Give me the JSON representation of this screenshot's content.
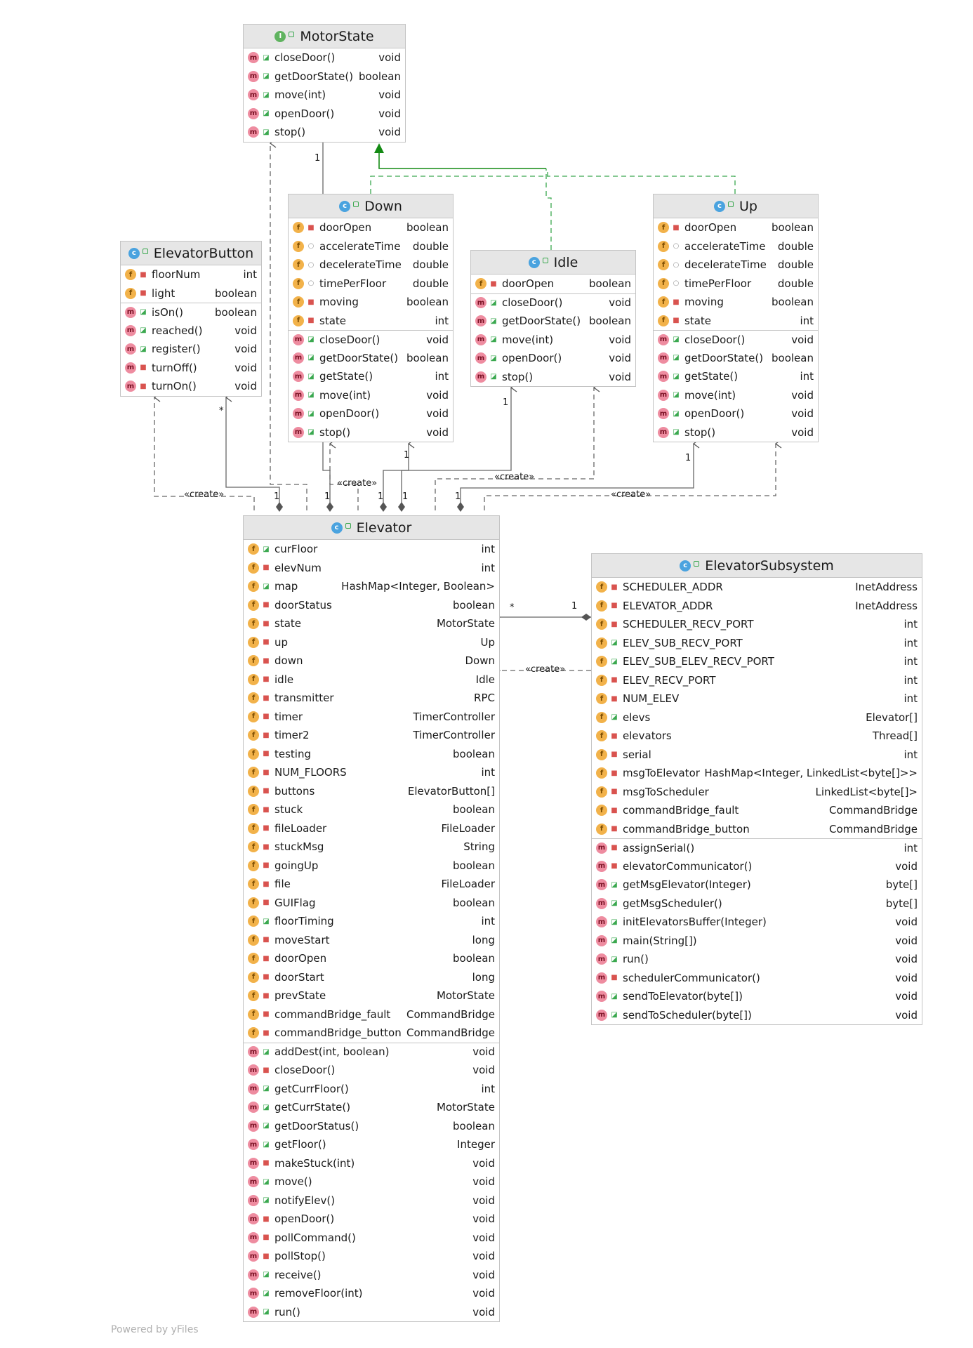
{
  "classes": {
    "motorstate": {
      "name": "MotorState",
      "kind": "interface",
      "fields": [],
      "methods": [
        {
          "n": "closeDoor()",
          "t": "void",
          "v": "pub"
        },
        {
          "n": "getDoorState()",
          "t": "boolean",
          "v": "pub"
        },
        {
          "n": "move(int)",
          "t": "void",
          "v": "pub"
        },
        {
          "n": "openDoor()",
          "t": "void",
          "v": "pub"
        },
        {
          "n": "stop()",
          "t": "void",
          "v": "pub"
        }
      ]
    },
    "down": {
      "name": "Down",
      "kind": "class",
      "fields": [
        {
          "n": "doorOpen",
          "t": "boolean",
          "v": "priv"
        },
        {
          "n": "accelerateTime",
          "t": "double",
          "v": "pkg"
        },
        {
          "n": "decelerateTime",
          "t": "double",
          "v": "pkg"
        },
        {
          "n": "timePerFloor",
          "t": "double",
          "v": "pkg"
        },
        {
          "n": "moving",
          "t": "boolean",
          "v": "priv"
        },
        {
          "n": "state",
          "t": "int",
          "v": "priv"
        }
      ],
      "methods": [
        {
          "n": "closeDoor()",
          "t": "void",
          "v": "pub"
        },
        {
          "n": "getDoorState()",
          "t": "boolean",
          "v": "pub"
        },
        {
          "n": "getState()",
          "t": "int",
          "v": "pub"
        },
        {
          "n": "move(int)",
          "t": "void",
          "v": "pub"
        },
        {
          "n": "openDoor()",
          "t": "void",
          "v": "pub"
        },
        {
          "n": "stop()",
          "t": "void",
          "v": "pub"
        }
      ]
    },
    "idle": {
      "name": "Idle",
      "kind": "class",
      "fields": [
        {
          "n": "doorOpen",
          "t": "boolean",
          "v": "priv"
        }
      ],
      "methods": [
        {
          "n": "closeDoor()",
          "t": "void",
          "v": "pub"
        },
        {
          "n": "getDoorState()",
          "t": "boolean",
          "v": "pub"
        },
        {
          "n": "move(int)",
          "t": "void",
          "v": "pub"
        },
        {
          "n": "openDoor()",
          "t": "void",
          "v": "pub"
        },
        {
          "n": "stop()",
          "t": "void",
          "v": "pub"
        }
      ]
    },
    "up": {
      "name": "Up",
      "kind": "class",
      "fields": [
        {
          "n": "doorOpen",
          "t": "boolean",
          "v": "priv"
        },
        {
          "n": "accelerateTime",
          "t": "double",
          "v": "pkg"
        },
        {
          "n": "decelerateTime",
          "t": "double",
          "v": "pkg"
        },
        {
          "n": "timePerFloor",
          "t": "double",
          "v": "pkg"
        },
        {
          "n": "moving",
          "t": "boolean",
          "v": "priv"
        },
        {
          "n": "state",
          "t": "int",
          "v": "priv"
        }
      ],
      "methods": [
        {
          "n": "closeDoor()",
          "t": "void",
          "v": "pub"
        },
        {
          "n": "getDoorState()",
          "t": "boolean",
          "v": "pub"
        },
        {
          "n": "getState()",
          "t": "int",
          "v": "pub"
        },
        {
          "n": "move(int)",
          "t": "void",
          "v": "pub"
        },
        {
          "n": "openDoor()",
          "t": "void",
          "v": "pub"
        },
        {
          "n": "stop()",
          "t": "void",
          "v": "pub"
        }
      ]
    },
    "elevatorbutton": {
      "name": "ElevatorButton",
      "kind": "class",
      "fields": [
        {
          "n": "floorNum",
          "t": "int",
          "v": "priv"
        },
        {
          "n": "light",
          "t": "boolean",
          "v": "priv"
        }
      ],
      "methods": [
        {
          "n": "isOn()",
          "t": "boolean",
          "v": "pub"
        },
        {
          "n": "reached()",
          "t": "void",
          "v": "pub"
        },
        {
          "n": "register()",
          "t": "void",
          "v": "pub"
        },
        {
          "n": "turnOff()",
          "t": "void",
          "v": "priv"
        },
        {
          "n": "turnOn()",
          "t": "void",
          "v": "priv"
        }
      ]
    },
    "elevator": {
      "name": "Elevator",
      "kind": "class",
      "fields": [
        {
          "n": "curFloor",
          "t": "int",
          "v": "pub"
        },
        {
          "n": "elevNum",
          "t": "int",
          "v": "priv"
        },
        {
          "n": "map",
          "t": "HashMap<Integer, Boolean>",
          "v": "pub"
        },
        {
          "n": "doorStatus",
          "t": "boolean",
          "v": "priv"
        },
        {
          "n": "state",
          "t": "MotorState",
          "v": "priv"
        },
        {
          "n": "up",
          "t": "Up",
          "v": "priv"
        },
        {
          "n": "down",
          "t": "Down",
          "v": "priv"
        },
        {
          "n": "idle",
          "t": "Idle",
          "v": "priv"
        },
        {
          "n": "transmitter",
          "t": "RPC",
          "v": "priv"
        },
        {
          "n": "timer",
          "t": "TimerController",
          "v": "priv"
        },
        {
          "n": "timer2",
          "t": "TimerController",
          "v": "priv"
        },
        {
          "n": "testing",
          "t": "boolean",
          "v": "priv"
        },
        {
          "n": "NUM_FLOORS",
          "t": "int",
          "v": "priv"
        },
        {
          "n": "buttons",
          "t": "ElevatorButton[]",
          "v": "priv"
        },
        {
          "n": "stuck",
          "t": "boolean",
          "v": "priv"
        },
        {
          "n": "fileLoader",
          "t": "FileLoader",
          "v": "priv"
        },
        {
          "n": "stuckMsg",
          "t": "String",
          "v": "priv"
        },
        {
          "n": "goingUp",
          "t": "boolean",
          "v": "priv"
        },
        {
          "n": "file",
          "t": "FileLoader",
          "v": "priv"
        },
        {
          "n": "GUIFlag",
          "t": "boolean",
          "v": "priv"
        },
        {
          "n": "floorTiming",
          "t": "int",
          "v": "pub"
        },
        {
          "n": "moveStart",
          "t": "long",
          "v": "priv"
        },
        {
          "n": "doorOpen",
          "t": "boolean",
          "v": "priv"
        },
        {
          "n": "doorStart",
          "t": "long",
          "v": "priv"
        },
        {
          "n": "prevState",
          "t": "MotorState",
          "v": "priv"
        },
        {
          "n": "commandBridge_fault",
          "t": "CommandBridge",
          "v": "priv"
        },
        {
          "n": "commandBridge_button",
          "t": "CommandBridge",
          "v": "priv"
        }
      ],
      "methods": [
        {
          "n": "addDest(int, boolean)",
          "t": "void",
          "v": "pub"
        },
        {
          "n": "closeDoor()",
          "t": "void",
          "v": "priv"
        },
        {
          "n": "getCurrFloor()",
          "t": "int",
          "v": "pub"
        },
        {
          "n": "getCurrState()",
          "t": "MotorState",
          "v": "pub"
        },
        {
          "n": "getDoorStatus()",
          "t": "boolean",
          "v": "pub"
        },
        {
          "n": "getFloor()",
          "t": "Integer",
          "v": "pub"
        },
        {
          "n": "makeStuck(int)",
          "t": "void",
          "v": "priv"
        },
        {
          "n": "move()",
          "t": "void",
          "v": "pub"
        },
        {
          "n": "notifyElev()",
          "t": "void",
          "v": "pub"
        },
        {
          "n": "openDoor()",
          "t": "void",
          "v": "priv"
        },
        {
          "n": "pollCommand()",
          "t": "void",
          "v": "priv"
        },
        {
          "n": "pollStop()",
          "t": "void",
          "v": "priv"
        },
        {
          "n": "receive()",
          "t": "void",
          "v": "pub"
        },
        {
          "n": "removeFloor(int)",
          "t": "void",
          "v": "pub"
        },
        {
          "n": "run()",
          "t": "void",
          "v": "pub"
        }
      ]
    },
    "elevatorsubsystem": {
      "name": "ElevatorSubsystem",
      "kind": "class",
      "fields": [
        {
          "n": "SCHEDULER_ADDR",
          "t": "InetAddress",
          "v": "priv"
        },
        {
          "n": "ELEVATOR_ADDR",
          "t": "InetAddress",
          "v": "priv"
        },
        {
          "n": "SCHEDULER_RECV_PORT",
          "t": "int",
          "v": "priv"
        },
        {
          "n": "ELEV_SUB_RECV_PORT",
          "t": "int",
          "v": "pub"
        },
        {
          "n": "ELEV_SUB_ELEV_RECV_PORT",
          "t": "int",
          "v": "pub"
        },
        {
          "n": "ELEV_RECV_PORT",
          "t": "int",
          "v": "priv"
        },
        {
          "n": "NUM_ELEV",
          "t": "int",
          "v": "priv"
        },
        {
          "n": "elevs",
          "t": "Elevator[]",
          "v": "pub"
        },
        {
          "n": "elevators",
          "t": "Thread[]",
          "v": "priv"
        },
        {
          "n": "serial",
          "t": "int",
          "v": "priv"
        },
        {
          "n": "msgToElevators",
          "t": "HashMap<Integer, LinkedList<byte[]>>",
          "v": "priv"
        },
        {
          "n": "msgToScheduler",
          "t": "LinkedList<byte[]>",
          "v": "priv"
        },
        {
          "n": "commandBridge_fault",
          "t": "CommandBridge",
          "v": "priv"
        },
        {
          "n": "commandBridge_button",
          "t": "CommandBridge",
          "v": "priv"
        }
      ],
      "methods": [
        {
          "n": "assignSerial()",
          "t": "int",
          "v": "priv"
        },
        {
          "n": "elevatorCommunicator()",
          "t": "void",
          "v": "priv"
        },
        {
          "n": "getMsgElevator(Integer)",
          "t": "byte[]",
          "v": "pub"
        },
        {
          "n": "getMsgScheduler()",
          "t": "byte[]",
          "v": "pub"
        },
        {
          "n": "initElevatorsBuffer(Integer)",
          "t": "void",
          "v": "pub"
        },
        {
          "n": "main(String[])",
          "t": "void",
          "v": "pub"
        },
        {
          "n": "run()",
          "t": "void",
          "v": "pub"
        },
        {
          "n": "schedulerCommunicator()",
          "t": "void",
          "v": "priv"
        },
        {
          "n": "sendToElevator(byte[])",
          "t": "void",
          "v": "pub"
        },
        {
          "n": "sendToScheduler(byte[])",
          "t": "void",
          "v": "pub"
        }
      ]
    }
  },
  "edge_labels": {
    "create": "«create»",
    "one": "1",
    "many": "*"
  },
  "footer": "Powered by yFiles"
}
